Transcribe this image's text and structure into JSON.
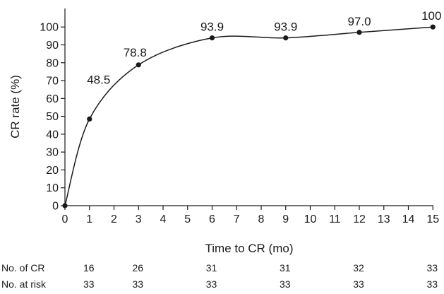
{
  "chart_data": {
    "type": "line",
    "xlabel": "Time to CR (mo)",
    "ylabel": "CR rate (%)",
    "xlim": [
      0,
      15
    ],
    "ylim": [
      0,
      100
    ],
    "x_ticks": [
      "0",
      "1",
      "2",
      "3",
      "4",
      "5",
      "6",
      "7",
      "8",
      "9",
      "10",
      "11",
      "12",
      "13",
      "14",
      "15"
    ],
    "y_ticks": [
      "0",
      "10",
      "20",
      "30",
      "40",
      "50",
      "60",
      "70",
      "80",
      "90",
      "100"
    ],
    "series": [
      {
        "x": [
          0,
          1,
          3,
          6,
          9,
          12,
          15
        ],
        "y": [
          0,
          48.5,
          78.8,
          93.9,
          93.9,
          97.0,
          100
        ],
        "labels": [
          "",
          "48.5",
          "78.8",
          "93.9",
          "93.9",
          "97.0",
          "100"
        ]
      }
    ],
    "grid": false,
    "risk_table": {
      "times": [
        1,
        3,
        6,
        9,
        12,
        15
      ],
      "rows": [
        {
          "label": "No. of CR",
          "values": [
            "16",
            "26",
            "31",
            "31",
            "32",
            "33"
          ]
        },
        {
          "label": "No. at risk",
          "values": [
            "33",
            "33",
            "33",
            "33",
            "33",
            "33"
          ]
        }
      ]
    }
  }
}
